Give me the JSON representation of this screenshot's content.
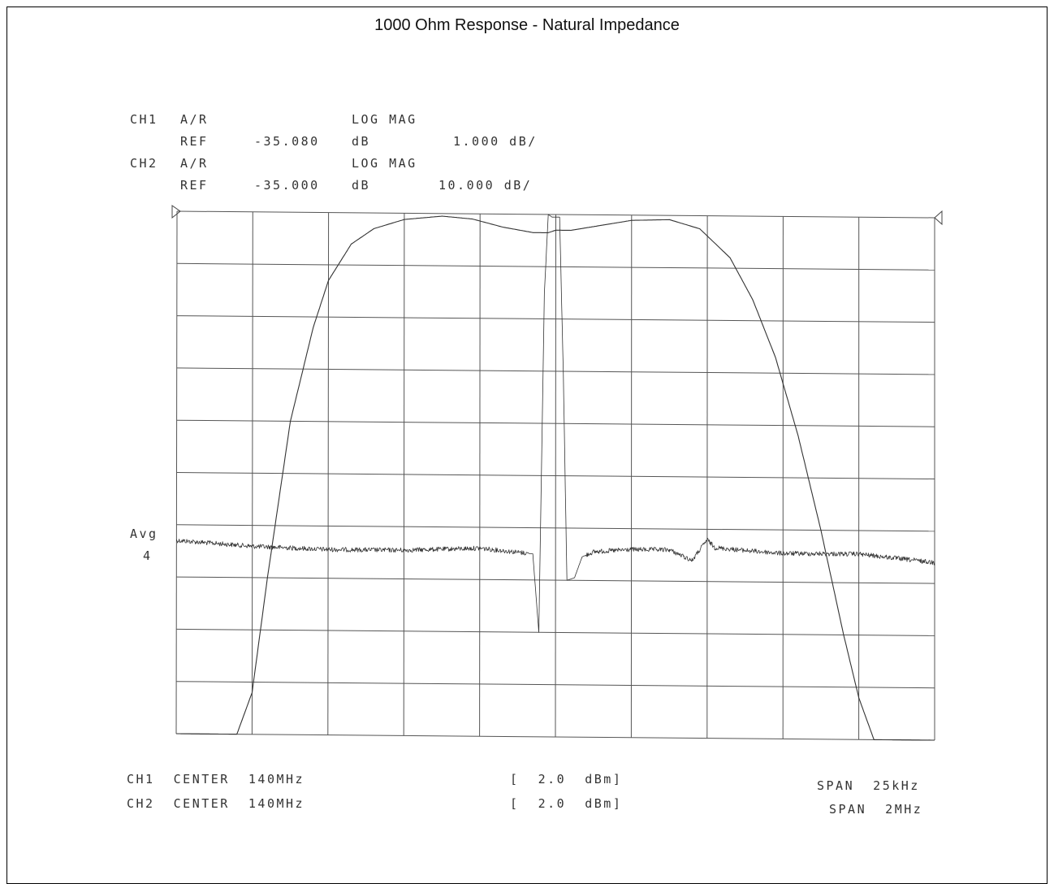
{
  "title": "1000 Ohm Response - Natural Impedance",
  "header": {
    "ch1_label": "CH1",
    "ch1_meas": "A/R",
    "ch1_format": "LOG MAG",
    "ch1_ref_word": "REF",
    "ch1_ref": "-35.080",
    "ch1_ref_unit": "dB",
    "ch1_scale": "1.000 dB/",
    "ch2_label": "CH2",
    "ch2_meas": "A/R",
    "ch2_format": "LOG MAG",
    "ch2_ref_word": "REF",
    "ch2_ref": "-35.000",
    "ch2_ref_unit": "dB",
    "ch2_scale": "10.000 dB/"
  },
  "avg": {
    "label": "Avg",
    "value": "4"
  },
  "footer": {
    "ch1_center": "CH1  CENTER  140MHz",
    "ch2_center": "CH2  CENTER  140MHz",
    "ch1_power": "[  2.0  dBm]",
    "ch2_power": "[  2.0  dBm]",
    "ch1_span": "SPAN  25kHz",
    "ch2_span": "SPAN  2MHz"
  },
  "chart_data": {
    "type": "line",
    "title": "1000 Ohm Response - Natural Impedance",
    "xlabel": "",
    "ylabel": "",
    "x_divisions": 10,
    "y_divisions": 10,
    "grid": true,
    "x_unit": "divisions",
    "y_unit": "divisions below reference line",
    "series": [
      {
        "name": "CH1",
        "x": [
          0,
          0.3,
          0.8,
          1.0,
          1.2,
          1.5,
          1.8,
          2.0,
          2.3,
          2.6,
          3.0,
          3.5,
          3.9,
          4.3,
          4.7,
          4.9,
          5.0,
          5.2,
          5.6,
          6.0,
          6.5,
          6.9,
          7.3,
          7.6,
          7.9,
          8.2,
          8.5,
          8.8,
          9.0,
          9.2,
          9.4,
          9.6,
          10.0
        ],
        "values": [
          10.0,
          10.0,
          10.0,
          9.2,
          7.0,
          4.0,
          2.2,
          1.3,
          0.6,
          0.3,
          0.12,
          0.05,
          0.1,
          0.25,
          0.35,
          0.35,
          0.3,
          0.3,
          0.2,
          0.1,
          0.08,
          0.25,
          0.8,
          1.6,
          2.7,
          4.2,
          6.0,
          8.0,
          9.2,
          10.0,
          10.0,
          10.0,
          10.0
        ]
      },
      {
        "name": "CH2",
        "x": [
          0,
          1,
          2,
          3,
          4,
          4.7,
          4.78,
          4.85,
          4.9,
          4.95,
          5.05,
          5.1,
          5.15,
          5.25,
          5.35,
          5.5,
          6,
          6.5,
          6.8,
          7.0,
          7.1,
          7.5,
          8,
          9,
          10
        ],
        "values": [
          6.3,
          6.4,
          6.45,
          6.45,
          6.4,
          6.5,
          8.0,
          1.5,
          0.0,
          0.05,
          0.05,
          3.0,
          7.0,
          6.95,
          6.55,
          6.45,
          6.4,
          6.4,
          6.6,
          6.2,
          6.35,
          6.4,
          6.45,
          6.45,
          6.6
        ]
      }
    ]
  }
}
